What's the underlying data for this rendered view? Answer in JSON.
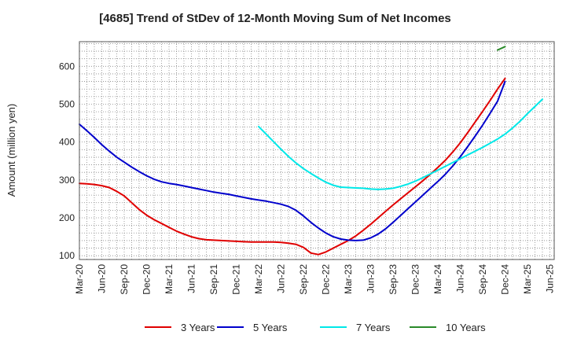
{
  "chart_data": {
    "type": "line",
    "title": "[4685]  Trend of StDev of 12-Month Moving Sum of Net Incomes",
    "xlabel": "",
    "ylabel": "Amount (million yen)",
    "ylim": [
      90,
      665
    ],
    "yticks": [
      100,
      200,
      300,
      400,
      500,
      600
    ],
    "xticks": [
      "Mar-20",
      "Jun-20",
      "Sep-20",
      "Dec-20",
      "Mar-21",
      "Jun-21",
      "Sep-21",
      "Dec-21",
      "Mar-22",
      "Jun-22",
      "Sep-22",
      "Dec-22",
      "Mar-23",
      "Jun-23",
      "Sep-23",
      "Dec-23",
      "Mar-24",
      "Jun-24",
      "Sep-24",
      "Dec-24",
      "Mar-25",
      "Jun-25"
    ],
    "grid": true,
    "legend_position": "bottom",
    "series": [
      {
        "name": "3 Years",
        "color": "#e00000",
        "start_index": 0,
        "values": [
          291,
          290,
          288,
          285,
          280,
          270,
          258,
          240,
          222,
          207,
          195,
          185,
          175,
          165,
          157,
          150,
          145,
          142,
          141,
          140,
          139,
          138,
          137,
          136,
          136,
          136,
          136,
          135,
          133,
          130,
          122,
          107,
          103,
          110,
          120,
          130,
          140,
          152,
          167,
          183,
          200,
          217,
          234,
          250,
          266,
          282,
          298,
          315,
          333,
          352,
          374,
          398,
          425,
          453,
          481,
          510,
          540,
          568
        ]
      },
      {
        "name": "5 Years",
        "color": "#0000cc",
        "start_index": 0,
        "values": [
          447,
          430,
          412,
          393,
          376,
          360,
          347,
          334,
          322,
          311,
          302,
          295,
          291,
          288,
          284,
          280,
          276,
          272,
          268,
          265,
          262,
          258,
          254,
          250,
          247,
          244,
          240,
          236,
          230,
          220,
          205,
          188,
          173,
          160,
          150,
          144,
          141,
          140,
          141,
          147,
          157,
          171,
          188,
          206,
          224,
          242,
          260,
          278,
          296,
          315,
          337,
          361,
          388,
          416,
          445,
          476,
          508,
          560
        ]
      },
      {
        "name": "7 Years",
        "color": "#00e8e8",
        "start_index": 24,
        "values": [
          441,
          421,
          401,
          381,
          362,
          345,
          330,
          317,
          305,
          294,
          286,
          281,
          280,
          279,
          278,
          276,
          275,
          276,
          278,
          283,
          289,
          297,
          306,
          316,
          326,
          336,
          346,
          356,
          366,
          376,
          386,
          397,
          408,
          421,
          437,
          455,
          475,
          494,
          513
        ]
      },
      {
        "name": "10 Years",
        "color": "#2a8a2a",
        "start_index": 56,
        "values": [
          643,
          652
        ]
      }
    ]
  }
}
